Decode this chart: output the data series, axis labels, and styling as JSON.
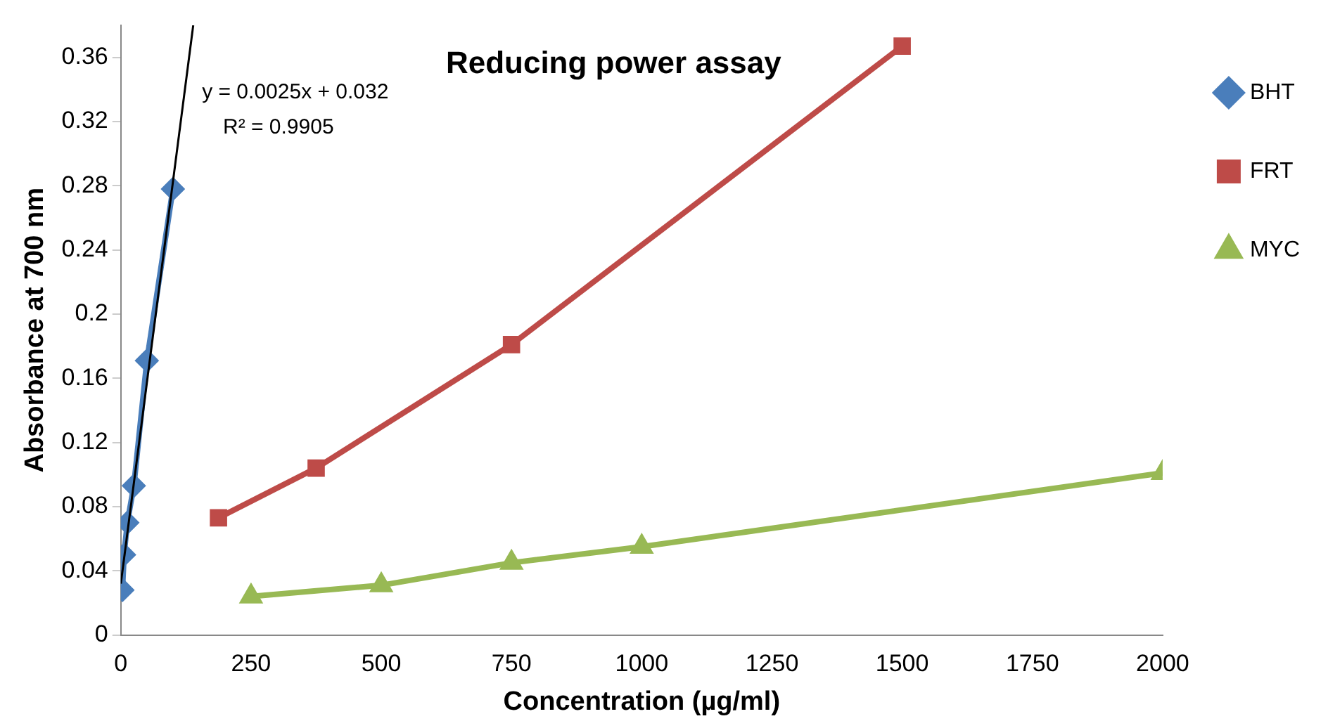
{
  "chart_data": {
    "type": "line",
    "title": "Reducing power assay",
    "xlabel": "Concentration (µg/ml)",
    "ylabel": "Absorbance at 700 nm",
    "xlim": [
      0,
      2000
    ],
    "xticks": [
      0,
      250,
      500,
      750,
      1000,
      1250,
      1500,
      1750,
      2000
    ],
    "ylim": [
      0,
      0.38
    ],
    "yticks": [
      0,
      0.04,
      0.08,
      0.12,
      0.16,
      0.2,
      0.24,
      0.28,
      0.32,
      0.36
    ],
    "grid": false,
    "legend": "right",
    "annotations": [
      "y = 0.0025x + 0.032",
      "R² = 0.9905"
    ],
    "series": [
      {
        "name": "BHT",
        "color": "#4a7ebb",
        "marker": "diamond",
        "x": [
          3.125,
          6.25,
          12.5,
          25,
          50,
          100
        ],
        "values": [
          0.028,
          0.05,
          0.07,
          0.093,
          0.171,
          0.278
        ]
      },
      {
        "name": "FRT",
        "color": "#be4b48",
        "marker": "square",
        "x": [
          187.5,
          375,
          750,
          1500
        ],
        "values": [
          0.073,
          0.104,
          0.181,
          0.367
        ]
      },
      {
        "name": "MYC",
        "color": "#98b954",
        "marker": "triangle",
        "x": [
          250,
          500,
          750,
          1000,
          2000
        ],
        "values": [
          0.024,
          0.031,
          0.045,
          0.055,
          0.101
        ]
      },
      {
        "type": "line",
        "color": "#000000",
        "marker": "none",
        "x": [
          0,
          139
        ],
        "values": [
          0.032,
          0.38
        ]
      }
    ]
  }
}
